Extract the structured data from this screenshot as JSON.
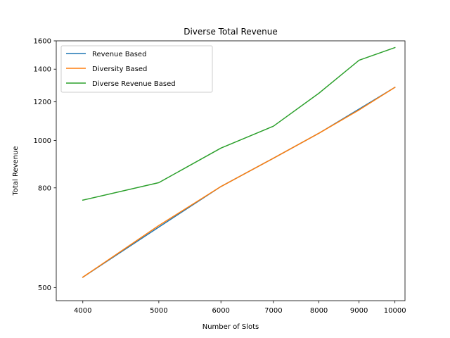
{
  "chart_data": {
    "type": "line",
    "title": "Diverse Total Revenue",
    "xlabel": "Number of Slots",
    "ylabel": "Total Revenue",
    "x": [
      4000,
      5000,
      6000,
      7000,
      8000,
      9000,
      10000
    ],
    "xticks": [
      4000,
      5000,
      6000,
      7000,
      8000,
      9000,
      10000
    ],
    "yticks": [
      500,
      800,
      1000,
      1200,
      1400,
      1600
    ],
    "xlim": [
      3700,
      10300
    ],
    "ylim": [
      470,
      1600
    ],
    "grid": false,
    "legend_position": "top-left",
    "series": [
      {
        "name": "Revenue Based",
        "color": "#1f77b4",
        "values": [
          525,
          665,
          805,
          920,
          1035,
          1160,
          1285
        ]
      },
      {
        "name": "Diversity Based",
        "color": "#ff7f0e",
        "values": [
          525,
          670,
          805,
          920,
          1035,
          1155,
          1285
        ]
      },
      {
        "name": "Diverse Revenue Based",
        "color": "#2ca02c",
        "values": [
          755,
          820,
          965,
          1070,
          1250,
          1460,
          1550
        ]
      }
    ]
  }
}
